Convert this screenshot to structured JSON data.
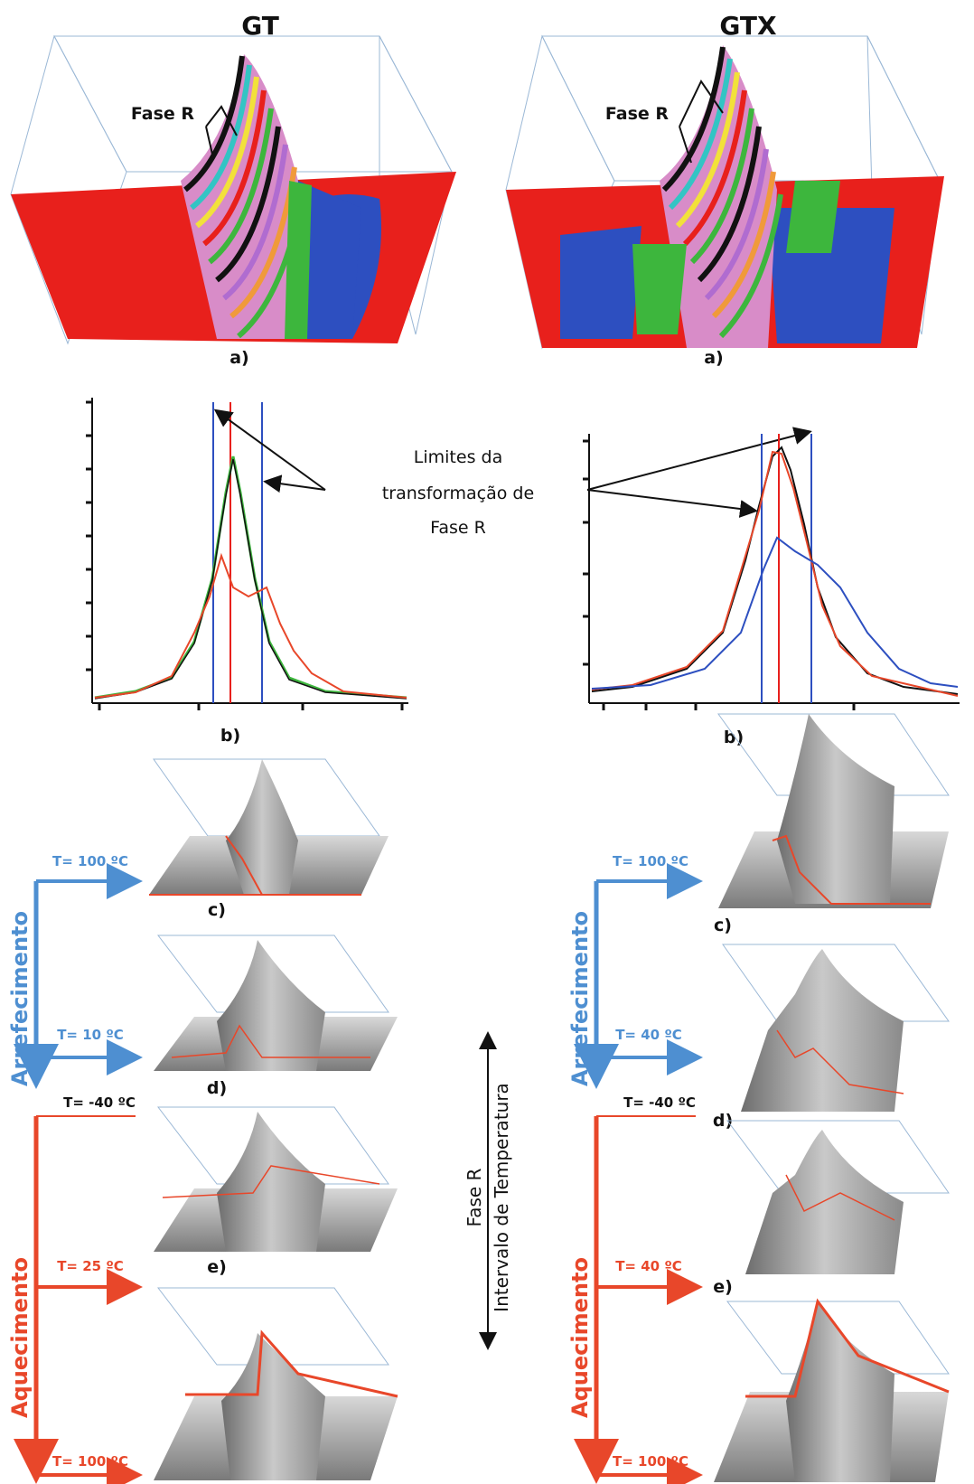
{
  "titles": {
    "left": "GT",
    "right": "GTX"
  },
  "fase_r_label": "Fase R",
  "panel_labels": {
    "a": "a)",
    "b": "b)",
    "c": "c)",
    "d": "d)",
    "e": "e)"
  },
  "limits_note": {
    "line1": "Limites da",
    "line2": "transformação de",
    "line3": "Fase R"
  },
  "middle_axis": {
    "top": "Fase R",
    "bottom": "Intervalo de Temperatura"
  },
  "process": {
    "cooling": "Arrefecimento",
    "heating": "Aquecimento"
  },
  "temperatures": {
    "left": {
      "t1": "T= 100 ºC",
      "t2": "T= 10 ºC",
      "t3": "T= -40 ºC",
      "t4": "T= 25 ºC",
      "t5": "T= 100 ºC"
    },
    "right": {
      "t1": "T= 100 ºC",
      "t2": "T= 40 ºC",
      "t3": "T= -40 ºC",
      "t4": "T= 40 ºC",
      "t5": "T= 100 ºC"
    }
  },
  "colors": {
    "cooling": "#4e8fd1",
    "heating": "#e8472a",
    "surface_red": "#e8201c",
    "surface_blue": "#2d4fc0",
    "surface_green": "#3db63d",
    "gray_surface": "#9a9a9a"
  }
}
